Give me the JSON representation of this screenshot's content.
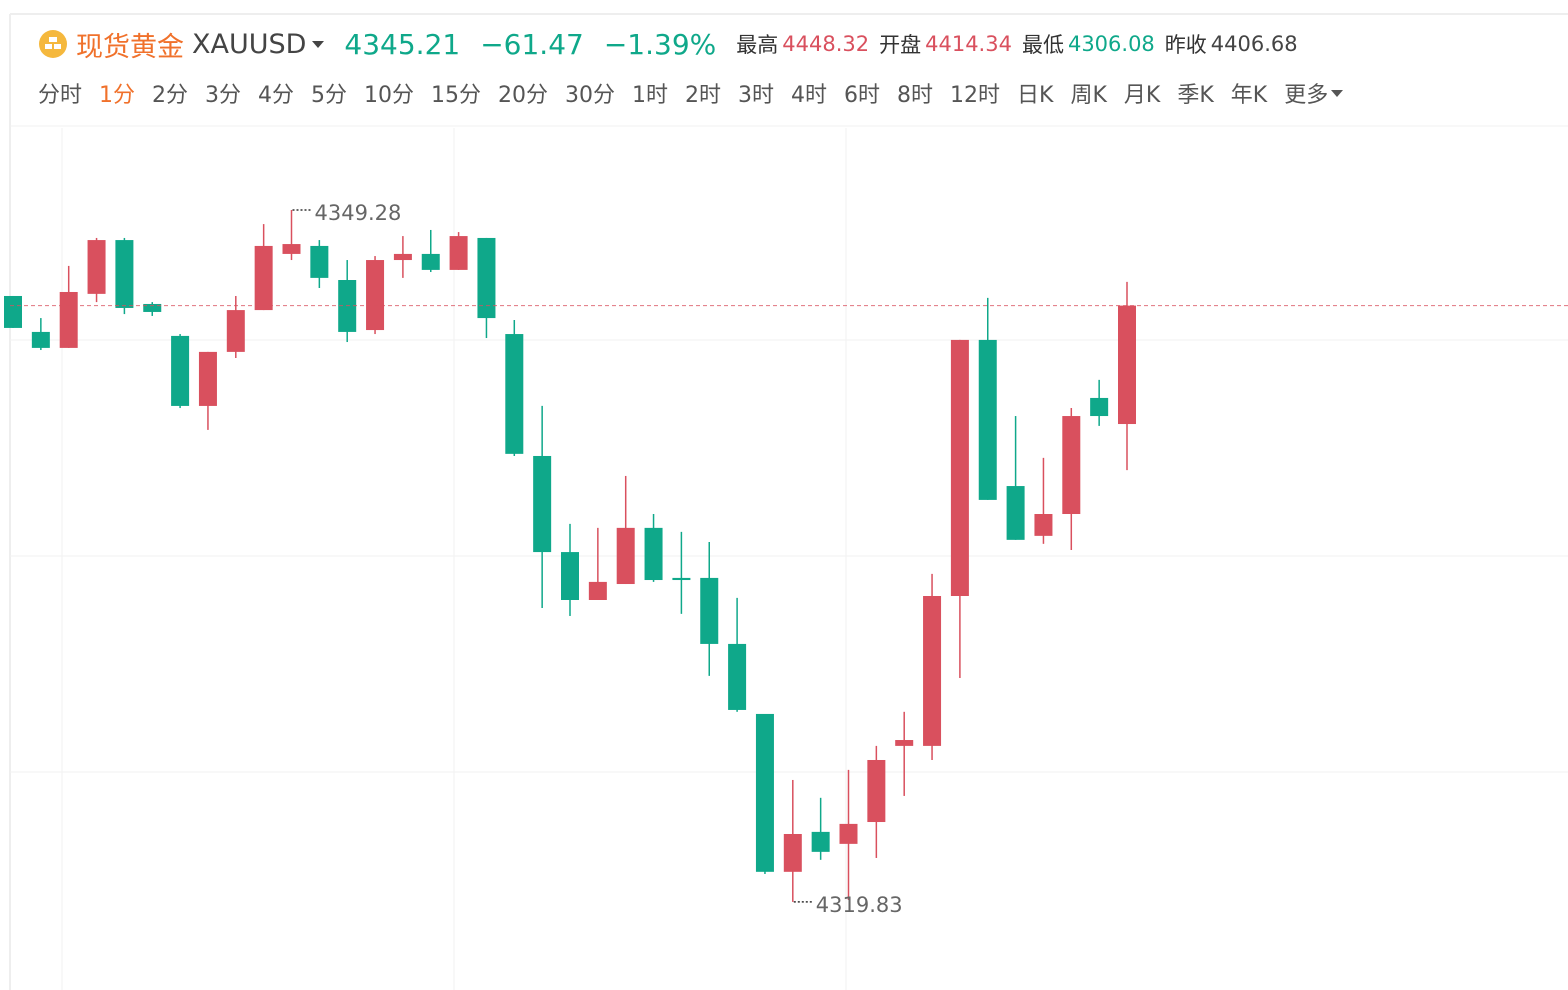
{
  "header": {
    "name": "现货黄金",
    "symbol": "XAUUSD",
    "price": "4345.21",
    "change": "−61.47",
    "change_pct": "−1.39%",
    "stats": [
      {
        "label": "最高",
        "value": "4448.32"
      },
      {
        "label": "开盘",
        "value": "4414.34"
      },
      {
        "label": "最低",
        "value": "4306.08"
      },
      {
        "label": "昨收",
        "value": "4406.68"
      }
    ]
  },
  "tabs": {
    "items": [
      "分时",
      "1分",
      "2分",
      "3分",
      "4分",
      "5分",
      "10分",
      "15分",
      "20分",
      "30分",
      "1时",
      "2时",
      "3时",
      "4时",
      "6时",
      "8时",
      "12时",
      "日K",
      "周K",
      "月K",
      "季K",
      "年K",
      "更多"
    ],
    "active": 1
  },
  "chart_data": {
    "type": "candlestick",
    "open": [
      4345.62,
      4344.09,
      4343.41,
      4345.71,
      4348.0,
      4345.28,
      4343.92,
      4340.94,
      4343.24,
      4345.02,
      4347.41,
      4347.75,
      4346.3,
      4344.17,
      4347.15,
      4347.41,
      4346.73,
      4348.09,
      4344.0,
      4338.81,
      4334.72,
      4332.68,
      4333.36,
      4335.75,
      4333.62,
      4333.62,
      4330.81,
      4327.83,
      4321.11,
      4322.81,
      4322.3,
      4323.23,
      4326.47,
      4326.47,
      4332.85,
      4343.75,
      4337.53,
      4335.41,
      4336.34,
      4341.28,
      4340.17
    ],
    "high": [
      4345.62,
      4344.68,
      4346.9,
      4348.09,
      4348.09,
      4345.36,
      4344.0,
      4343.24,
      4345.62,
      4348.68,
      4349.28,
      4348.0,
      4347.15,
      4347.32,
      4348.17,
      4348.43,
      4348.34,
      4348.09,
      4344.6,
      4340.94,
      4335.92,
      4335.75,
      4337.96,
      4336.34,
      4335.58,
      4335.15,
      4332.77,
      4327.83,
      4325.02,
      4324.26,
      4325.45,
      4326.47,
      4327.92,
      4333.79,
      4343.75,
      4345.54,
      4340.51,
      4338.73,
      4340.85,
      4342.05,
      4346.22
    ],
    "low": [
      4344.26,
      4343.32,
      4343.41,
      4345.36,
      4344.85,
      4344.77,
      4340.85,
      4339.92,
      4342.98,
      4345.02,
      4347.15,
      4345.96,
      4343.66,
      4344.0,
      4346.39,
      4346.64,
      4346.73,
      4343.83,
      4338.81,
      4332.34,
      4332.0,
      4332.68,
      4333.36,
      4333.45,
      4332.09,
      4329.45,
      4327.92,
      4321.02,
      4319.83,
      4321.62,
      4319.91,
      4321.7,
      4324.34,
      4325.87,
      4329.36,
      4336.94,
      4335.24,
      4335.07,
      4334.81,
      4340.09,
      4338.21
    ],
    "close": [
      4344.26,
      4343.41,
      4345.79,
      4348.0,
      4345.11,
      4344.94,
      4340.94,
      4343.24,
      4345.02,
      4347.75,
      4347.83,
      4346.39,
      4344.09,
      4347.15,
      4347.41,
      4346.73,
      4348.17,
      4344.68,
      4338.9,
      4334.72,
      4332.68,
      4333.45,
      4335.75,
      4333.53,
      4333.53,
      4330.81,
      4328.0,
      4321.11,
      4322.72,
      4321.96,
      4323.15,
      4325.87,
      4326.72,
      4332.85,
      4343.75,
      4336.94,
      4335.24,
      4336.34,
      4340.51,
      4340.51,
      4345.21
    ],
    "up_color": "#d9505e",
    "down_color": "#0fa88a",
    "ylim": [
      4316.08,
      4352.77
    ],
    "max_label": 4349.28,
    "min_label": 4319.83
  }
}
